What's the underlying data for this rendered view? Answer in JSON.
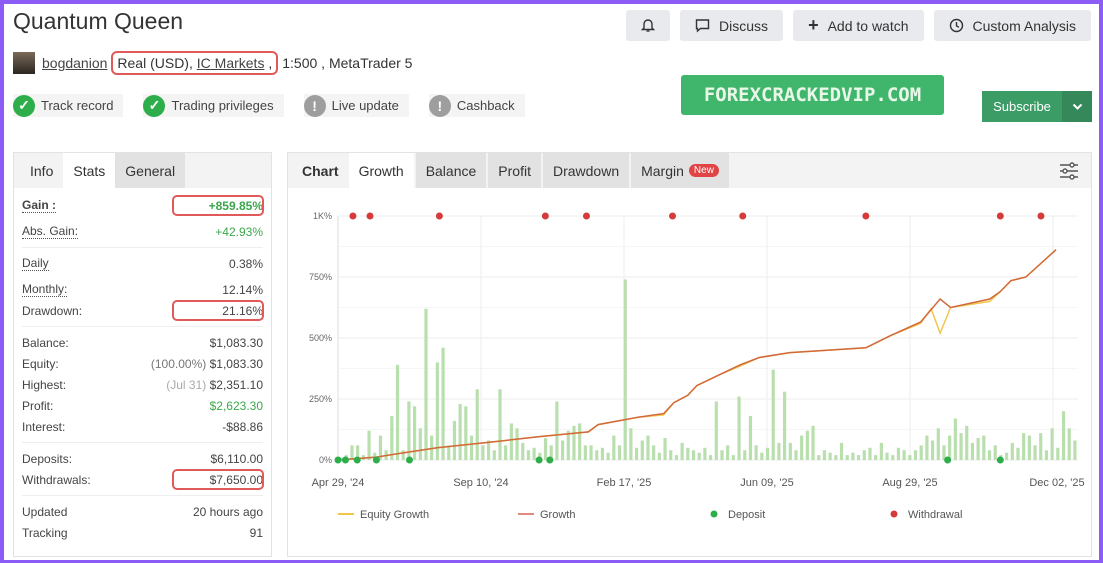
{
  "title": "Quantum Queen",
  "meta": {
    "user": "bogdanion",
    "account_type": "Real (USD),",
    "broker": "IC Markets",
    "after_broker": ",",
    "leverage": "1:500 ,",
    "platform": "MetaTrader 5"
  },
  "badges": [
    {
      "label": "Track record",
      "status": "ok"
    },
    {
      "label": "Trading privileges",
      "status": "ok"
    },
    {
      "label": "Live update",
      "status": "warn"
    },
    {
      "label": "Cashback",
      "status": "warn"
    }
  ],
  "toolbar": {
    "discuss": "Discuss",
    "watch": "Add to watch",
    "analysis": "Custom Analysis"
  },
  "watermark": "FOREXCRACKEDVIP.COM",
  "subscribe": "Subscribe",
  "left_tabs": [
    "Info",
    "Stats",
    "General"
  ],
  "stats": {
    "gain": {
      "label": "Gain :",
      "value": "+859.85%"
    },
    "abs_gain": {
      "label": "Abs. Gain:",
      "value": "+42.93%"
    },
    "daily": {
      "label": "Daily",
      "value": "0.38%"
    },
    "monthly": {
      "label": "Monthly:",
      "value": "12.14%"
    },
    "drawdown": {
      "label": "Drawdown:",
      "value": "21.16%"
    },
    "balance": {
      "label": "Balance:",
      "value": "$1,083.30"
    },
    "equity": {
      "label": "Equity:",
      "note": "(100.00%)",
      "value": "$1,083.30"
    },
    "highest": {
      "label": "Highest:",
      "note": "(Jul 31)",
      "value": "$2,351.10"
    },
    "profit": {
      "label": "Profit:",
      "value": "$2,623.30"
    },
    "interest": {
      "label": "Interest:",
      "value": "-$88.86"
    },
    "deposits": {
      "label": "Deposits:",
      "value": "$6,110.00"
    },
    "withdrawals": {
      "label": "Withdrawals:",
      "value": "$7,650.00"
    },
    "updated": {
      "label": "Updated",
      "value": "20 hours ago"
    },
    "tracking": {
      "label": "Tracking",
      "value": "91"
    }
  },
  "chart_tabs": {
    "chart": "Chart",
    "growth": "Growth",
    "balance": "Balance",
    "profit": "Profit",
    "drawdown": "Drawdown",
    "margin": "Margin",
    "new_badge": "New"
  },
  "colors": {
    "accent_green": "#3aa84a",
    "highlight_red": "#e05a5a",
    "growth": "#d2693c",
    "equity": "#f0c64a",
    "deposit": "#2eae4b",
    "withdrawal": "#d63b3b",
    "bars": "#b9dfae",
    "frame": "#8b5cf6"
  },
  "chart_data": {
    "type": "line",
    "ylim": [
      0,
      1000
    ],
    "yticks": [
      {
        "v": 0,
        "label": "0%"
      },
      {
        "v": 250,
        "label": "250%"
      },
      {
        "v": 500,
        "label": "500%"
      },
      {
        "v": 750,
        "label": "750%"
      },
      {
        "v": 1000,
        "label": "1K%"
      }
    ],
    "xticks": [
      {
        "d": "2024-04-29",
        "label": "Apr 29, '24"
      },
      {
        "d": "2024-09-10",
        "label": "Sep 10, '24"
      },
      {
        "d": "2025-02-17",
        "label": "Feb 17, '25"
      },
      {
        "d": "2025-06-09",
        "label": "Jun 09, '25"
      },
      {
        "d": "2025-08-29",
        "label": "Aug 29, '25"
      },
      {
        "d": "2025-12-02",
        "label": "Dec 02, '25"
      }
    ],
    "grid": true,
    "legend": {
      "placement": "bottom",
      "items": [
        {
          "label": "Equity Growth",
          "kind": "line",
          "color": "#f0c64a"
        },
        {
          "label": "Growth",
          "kind": "line",
          "color": "#e08a80"
        },
        {
          "label": "Deposit",
          "kind": "dot",
          "color": "#2eae4b"
        },
        {
          "label": "Withdrawal",
          "kind": "dot",
          "color": "#d63b3b"
        }
      ]
    },
    "growth": [
      [
        "2024-04-29",
        0
      ],
      [
        "2024-06-04",
        12
      ],
      [
        "2024-06-23",
        25
      ],
      [
        "2024-07-31",
        50
      ],
      [
        "2024-09-18",
        72
      ],
      [
        "2024-11-13",
        95
      ],
      [
        "2025-01-08",
        115
      ],
      [
        "2025-01-19",
        145
      ],
      [
        "2025-02-28",
        175
      ],
      [
        "2025-03-20",
        190
      ],
      [
        "2025-03-28",
        235
      ],
      [
        "2025-04-08",
        265
      ],
      [
        "2025-04-15",
        305
      ],
      [
        "2025-05-03",
        350
      ],
      [
        "2025-05-19",
        390
      ],
      [
        "2025-06-03",
        420
      ],
      [
        "2025-06-22",
        440
      ],
      [
        "2025-08-04",
        460
      ],
      [
        "2025-08-18",
        510
      ],
      [
        "2025-09-05",
        565
      ],
      [
        "2025-09-18",
        660
      ],
      [
        "2025-09-25",
        625
      ],
      [
        "2025-10-21",
        660
      ],
      [
        "2025-10-28",
        690
      ],
      [
        "2025-11-04",
        735
      ],
      [
        "2025-11-14",
        750
      ],
      [
        "2025-12-04",
        862
      ]
    ],
    "equity": [
      [
        "2024-04-29",
        0
      ],
      [
        "2024-06-04",
        12
      ],
      [
        "2024-06-23",
        25
      ],
      [
        "2024-07-31",
        50
      ],
      [
        "2024-09-18",
        72
      ],
      [
        "2024-11-13",
        95
      ],
      [
        "2025-01-08",
        115
      ],
      [
        "2025-01-19",
        145
      ],
      [
        "2025-02-28",
        175
      ],
      [
        "2025-03-20",
        185
      ],
      [
        "2025-03-28",
        235
      ],
      [
        "2025-04-08",
        265
      ],
      [
        "2025-04-15",
        305
      ],
      [
        "2025-05-03",
        350
      ],
      [
        "2025-05-19",
        385
      ],
      [
        "2025-06-03",
        420
      ],
      [
        "2025-06-22",
        440
      ],
      [
        "2025-08-04",
        460
      ],
      [
        "2025-08-18",
        510
      ],
      [
        "2025-09-05",
        560
      ],
      [
        "2025-09-12",
        620
      ],
      [
        "2025-09-18",
        520
      ],
      [
        "2025-09-25",
        625
      ],
      [
        "2025-10-21",
        650
      ],
      [
        "2025-10-28",
        690
      ],
      [
        "2025-11-04",
        735
      ],
      [
        "2025-11-14",
        750
      ],
      [
        "2025-12-04",
        862
      ]
    ],
    "deposits": [
      "2024-04-29",
      "2024-05-06",
      "2024-05-17",
      "2024-06-04",
      "2024-07-05",
      "2024-11-14",
      "2024-11-26",
      "2025-09-23",
      "2025-10-28"
    ],
    "withdrawals": [
      "2024-05-13",
      "2024-05-29",
      "2024-08-02",
      "2024-11-21",
      "2025-01-06",
      "2025-03-27",
      "2025-05-21",
      "2025-08-04",
      "2025-10-28",
      "2025-11-24"
    ],
    "bars": [
      10,
      20,
      60,
      60,
      20,
      120,
      30,
      100,
      40,
      180,
      390,
      40,
      240,
      220,
      130,
      620,
      100,
      400,
      460,
      60,
      160,
      230,
      220,
      100,
      290,
      60,
      80,
      40,
      290,
      60,
      150,
      130,
      70,
      40,
      50,
      30,
      90,
      60,
      240,
      80,
      120,
      140,
      150,
      60,
      60,
      40,
      50,
      30,
      100,
      60,
      740,
      130,
      50,
      80,
      100,
      60,
      30,
      90,
      40,
      20,
      70,
      50,
      40,
      30,
      50,
      20,
      240,
      40,
      60,
      20,
      260,
      40,
      180,
      60,
      30,
      50,
      370,
      70,
      280,
      70,
      40,
      100,
      120,
      140,
      20,
      40,
      30,
      20,
      70,
      20,
      30,
      20,
      40,
      50,
      20,
      70,
      30,
      20,
      50,
      40,
      20,
      40,
      60,
      100,
      80,
      130,
      60,
      100,
      170,
      110,
      140,
      70,
      90,
      100,
      40,
      60,
      20,
      30,
      70,
      50,
      110,
      100,
      60,
      110,
      40,
      130,
      50,
      200,
      130,
      80
    ]
  }
}
